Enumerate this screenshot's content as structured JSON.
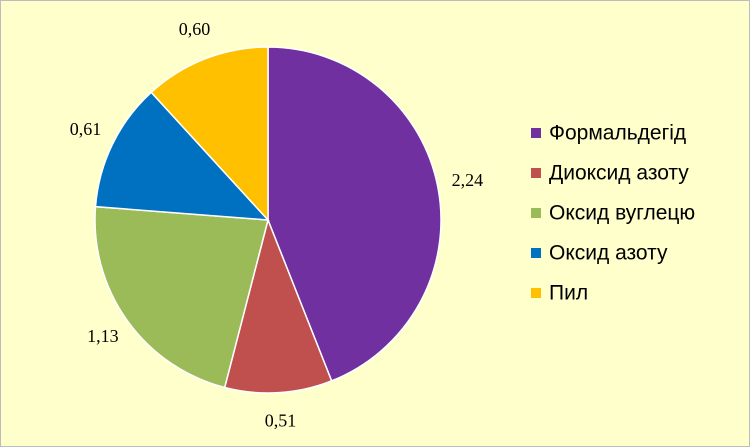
{
  "chart_data": {
    "type": "pie",
    "categories": [
      "Формальдегід",
      "Диоксид азоту",
      "Оксид вуглецю",
      "Оксид азоту",
      "Пил"
    ],
    "values": [
      2.24,
      0.51,
      1.13,
      0.61,
      0.6
    ],
    "value_labels": [
      "2,24",
      "0,51",
      "1,13",
      "0,61",
      "0,60"
    ],
    "colors": [
      "#7030a0",
      "#c0504d",
      "#9bbb59",
      "#0070c0",
      "#ffc000"
    ],
    "legend": "right"
  }
}
